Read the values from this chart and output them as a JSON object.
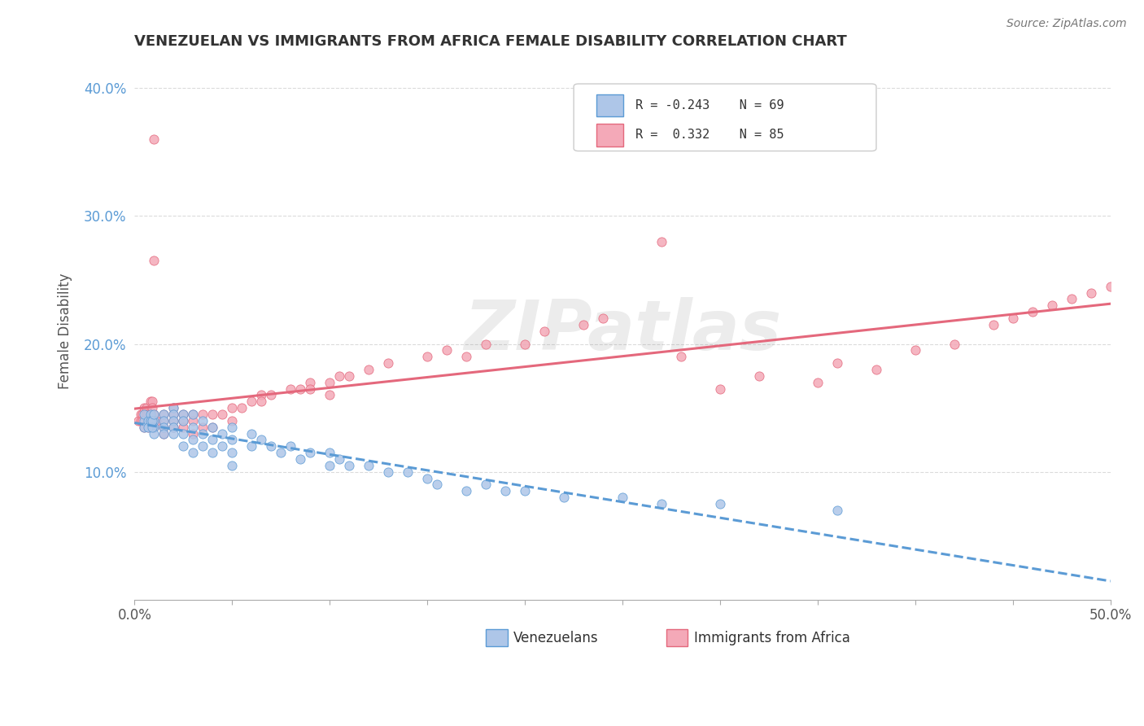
{
  "title": "VENEZUELAN VS IMMIGRANTS FROM AFRICA FEMALE DISABILITY CORRELATION CHART",
  "source": "Source: ZipAtlas.com",
  "ylabel": "Female Disability",
  "xlim": [
    0.0,
    0.5
  ],
  "ylim": [
    0.0,
    0.42
  ],
  "ytick_positions": [
    0.1,
    0.2,
    0.3,
    0.4
  ],
  "yticklabels": [
    "10.0%",
    "20.0%",
    "30.0%",
    "40.0%"
  ],
  "grid_color": "#cccccc",
  "background_color": "#ffffff",
  "watermark": "ZIPatlas",
  "series1_color": "#aec6e8",
  "series2_color": "#f4a9b8",
  "line1_color": "#5b9bd5",
  "line2_color": "#e4687c",
  "series1_label": "Venezuelans",
  "series2_label": "Immigrants from Africa",
  "venezuelan_x": [
    0.01,
    0.01,
    0.01,
    0.015,
    0.015,
    0.015,
    0.015,
    0.02,
    0.02,
    0.02,
    0.02,
    0.02,
    0.025,
    0.025,
    0.025,
    0.025,
    0.03,
    0.03,
    0.03,
    0.03,
    0.035,
    0.035,
    0.035,
    0.04,
    0.04,
    0.04,
    0.045,
    0.045,
    0.05,
    0.05,
    0.05,
    0.05,
    0.06,
    0.06,
    0.065,
    0.07,
    0.075,
    0.08,
    0.085,
    0.09,
    0.1,
    0.1,
    0.105,
    0.11,
    0.12,
    0.13,
    0.14,
    0.15,
    0.155,
    0.17,
    0.18,
    0.19,
    0.2,
    0.22,
    0.25,
    0.27,
    0.3,
    0.36,
    0.005,
    0.005,
    0.005,
    0.007,
    0.007,
    0.008,
    0.008,
    0.009,
    0.009,
    0.01
  ],
  "venezuelan_y": [
    0.14,
    0.135,
    0.13,
    0.145,
    0.14,
    0.135,
    0.13,
    0.15,
    0.145,
    0.14,
    0.135,
    0.13,
    0.145,
    0.14,
    0.13,
    0.12,
    0.145,
    0.135,
    0.125,
    0.115,
    0.14,
    0.13,
    0.12,
    0.135,
    0.125,
    0.115,
    0.13,
    0.12,
    0.135,
    0.125,
    0.115,
    0.105,
    0.13,
    0.12,
    0.125,
    0.12,
    0.115,
    0.12,
    0.11,
    0.115,
    0.115,
    0.105,
    0.11,
    0.105,
    0.105,
    0.1,
    0.1,
    0.095,
    0.09,
    0.085,
    0.09,
    0.085,
    0.085,
    0.08,
    0.08,
    0.075,
    0.075,
    0.07,
    0.14,
    0.145,
    0.135,
    0.14,
    0.135,
    0.145,
    0.14,
    0.135,
    0.14,
    0.145
  ],
  "africa_x": [
    0.005,
    0.005,
    0.005,
    0.007,
    0.007,
    0.008,
    0.009,
    0.01,
    0.01,
    0.01,
    0.015,
    0.015,
    0.015,
    0.015,
    0.02,
    0.02,
    0.02,
    0.02,
    0.025,
    0.025,
    0.025,
    0.03,
    0.03,
    0.03,
    0.035,
    0.035,
    0.04,
    0.04,
    0.045,
    0.05,
    0.05,
    0.055,
    0.06,
    0.065,
    0.065,
    0.07,
    0.08,
    0.085,
    0.09,
    0.09,
    0.1,
    0.1,
    0.105,
    0.11,
    0.12,
    0.13,
    0.15,
    0.16,
    0.17,
    0.18,
    0.2,
    0.21,
    0.23,
    0.24,
    0.27,
    0.28,
    0.3,
    0.32,
    0.35,
    0.36,
    0.38,
    0.4,
    0.42,
    0.44,
    0.45,
    0.46,
    0.47,
    0.48,
    0.49,
    0.5,
    0.002,
    0.003,
    0.003,
    0.004,
    0.004,
    0.005,
    0.006,
    0.006,
    0.007,
    0.008,
    0.009,
    0.009,
    0.01,
    0.01,
    0.011
  ],
  "africa_y": [
    0.14,
    0.145,
    0.135,
    0.14,
    0.135,
    0.145,
    0.14,
    0.145,
    0.14,
    0.135,
    0.145,
    0.14,
    0.135,
    0.13,
    0.15,
    0.145,
    0.14,
    0.135,
    0.145,
    0.14,
    0.135,
    0.145,
    0.14,
    0.13,
    0.145,
    0.135,
    0.145,
    0.135,
    0.145,
    0.15,
    0.14,
    0.15,
    0.155,
    0.16,
    0.155,
    0.16,
    0.165,
    0.165,
    0.17,
    0.165,
    0.17,
    0.16,
    0.175,
    0.175,
    0.18,
    0.185,
    0.19,
    0.195,
    0.19,
    0.2,
    0.2,
    0.21,
    0.215,
    0.22,
    0.28,
    0.19,
    0.165,
    0.175,
    0.17,
    0.185,
    0.18,
    0.195,
    0.2,
    0.215,
    0.22,
    0.225,
    0.23,
    0.235,
    0.24,
    0.245,
    0.14,
    0.145,
    0.14,
    0.145,
    0.14,
    0.15,
    0.15,
    0.145,
    0.145,
    0.155,
    0.155,
    0.15,
    0.265,
    0.36,
    0.14
  ]
}
